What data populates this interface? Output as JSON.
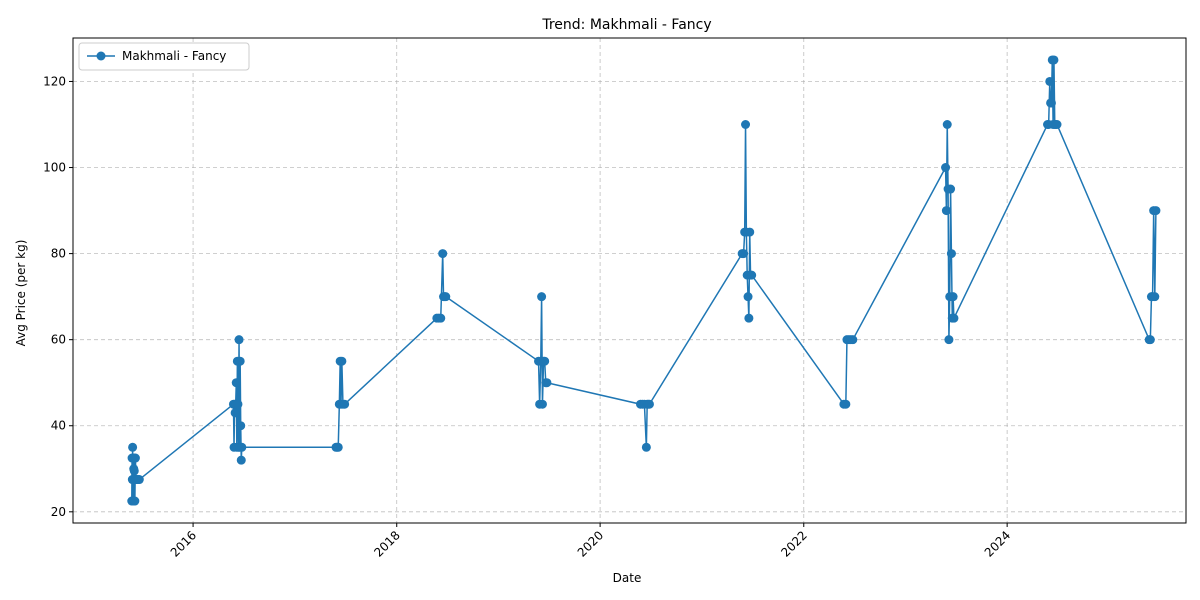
{
  "chart_data": {
    "type": "line",
    "title": "Trend: Makhmali - Fancy",
    "xlabel": "Date",
    "ylabel": "Avg Price (per kg)",
    "xlim": [
      "2014-10-27",
      "2025-10-04"
    ],
    "ylim": [
      17.4,
      130.1
    ],
    "x_ticks": [
      "2016-01-01",
      "2018-01-01",
      "2020-01-01",
      "2022-01-01",
      "2024-01-01"
    ],
    "x_tick_labels": [
      "2016",
      "2018",
      "2020",
      "2022",
      "2024"
    ],
    "y_ticks": [
      20,
      40,
      60,
      80,
      100,
      120
    ],
    "grid": true,
    "legend_position": "upper-left",
    "color": "#1f77b4",
    "series": [
      {
        "name": "Makhmali - Fancy",
        "points": [
          [
            "2015-05-26",
            22.5
          ],
          [
            "2015-05-27",
            32.5
          ],
          [
            "2015-05-28",
            27.5
          ],
          [
            "2015-05-29",
            35
          ],
          [
            "2015-05-30",
            22.5
          ],
          [
            "2015-05-31",
            27.5
          ],
          [
            "2015-06-01",
            32.5
          ],
          [
            "2015-06-02",
            30
          ],
          [
            "2015-06-03",
            22.5
          ],
          [
            "2015-06-04",
            29.5
          ],
          [
            "2015-06-05",
            32.5
          ],
          [
            "2015-06-06",
            22.5
          ],
          [
            "2015-06-07",
            27.5
          ],
          [
            "2015-06-08",
            32.5
          ],
          [
            "2015-06-10",
            27.5
          ],
          [
            "2015-06-14",
            27.5
          ],
          [
            "2015-06-18",
            27.5
          ],
          [
            "2015-06-22",
            27.5
          ],
          [
            "2016-05-25",
            45
          ],
          [
            "2016-05-27",
            35
          ],
          [
            "2016-05-29",
            45
          ],
          [
            "2016-05-31",
            43
          ],
          [
            "2016-06-02",
            45
          ],
          [
            "2016-06-04",
            50
          ],
          [
            "2016-06-06",
            35
          ],
          [
            "2016-06-08",
            55
          ],
          [
            "2016-06-10",
            45
          ],
          [
            "2016-06-12",
            35
          ],
          [
            "2016-06-14",
            60
          ],
          [
            "2016-06-16",
            35
          ],
          [
            "2016-06-18",
            55
          ],
          [
            "2016-06-20",
            40
          ],
          [
            "2016-06-22",
            32
          ],
          [
            "2016-06-24",
            35
          ],
          [
            "2017-05-28",
            35
          ],
          [
            "2017-06-01",
            35
          ],
          [
            "2017-06-05",
            35
          ],
          [
            "2017-06-09",
            45
          ],
          [
            "2017-06-12",
            55
          ],
          [
            "2017-06-15",
            45
          ],
          [
            "2017-06-18",
            55
          ],
          [
            "2017-06-22",
            45
          ],
          [
            "2017-06-28",
            45
          ],
          [
            "2018-05-25",
            65
          ],
          [
            "2018-06-01",
            65
          ],
          [
            "2018-06-08",
            65
          ],
          [
            "2018-06-15",
            80
          ],
          [
            "2018-06-18",
            70
          ],
          [
            "2018-06-22",
            70
          ],
          [
            "2018-06-26",
            70
          ],
          [
            "2019-05-25",
            55
          ],
          [
            "2019-05-29",
            45
          ],
          [
            "2019-06-02",
            55
          ],
          [
            "2019-06-05",
            70
          ],
          [
            "2019-06-08",
            45
          ],
          [
            "2019-06-12",
            55
          ],
          [
            "2019-06-16",
            55
          ],
          [
            "2019-06-20",
            50
          ],
          [
            "2019-06-24",
            50
          ],
          [
            "2020-05-25",
            45
          ],
          [
            "2020-06-01",
            45
          ],
          [
            "2020-06-08",
            45
          ],
          [
            "2020-06-15",
            35
          ],
          [
            "2020-06-18",
            45
          ],
          [
            "2020-06-22",
            45
          ],
          [
            "2020-06-26",
            45
          ],
          [
            "2021-05-25",
            80
          ],
          [
            "2021-05-30",
            80
          ],
          [
            "2021-06-03",
            85
          ],
          [
            "2021-06-06",
            110
          ],
          [
            "2021-06-09",
            85
          ],
          [
            "2021-06-12",
            75
          ],
          [
            "2021-06-15",
            70
          ],
          [
            "2021-06-18",
            65
          ],
          [
            "2021-06-21",
            85
          ],
          [
            "2021-06-24",
            75
          ],
          [
            "2021-06-28",
            75
          ],
          [
            "2022-05-25",
            45
          ],
          [
            "2022-06-01",
            45
          ],
          [
            "2022-06-05",
            60
          ],
          [
            "2022-06-12",
            60
          ],
          [
            "2022-06-19",
            60
          ],
          [
            "2022-06-26",
            60
          ],
          [
            "2023-05-25",
            100
          ],
          [
            "2023-05-28",
            90
          ],
          [
            "2023-05-31",
            110
          ],
          [
            "2023-06-03",
            95
          ],
          [
            "2023-06-06",
            60
          ],
          [
            "2023-06-09",
            70
          ],
          [
            "2023-06-12",
            95
          ],
          [
            "2023-06-15",
            80
          ],
          [
            "2023-06-18",
            65
          ],
          [
            "2023-06-21",
            70
          ],
          [
            "2023-06-24",
            65
          ],
          [
            "2024-05-25",
            110
          ],
          [
            "2024-05-29",
            110
          ],
          [
            "2024-06-02",
            120
          ],
          [
            "2024-06-05",
            115
          ],
          [
            "2024-06-08",
            115
          ],
          [
            "2024-06-11",
            125
          ],
          [
            "2024-06-14",
            110
          ],
          [
            "2024-06-17",
            125
          ],
          [
            "2024-06-20",
            110
          ],
          [
            "2024-06-24",
            110
          ],
          [
            "2024-06-28",
            110
          ],
          [
            "2025-05-25",
            60
          ],
          [
            "2025-05-29",
            60
          ],
          [
            "2025-06-02",
            70
          ],
          [
            "2025-06-06",
            70
          ],
          [
            "2025-06-10",
            90
          ],
          [
            "2025-06-14",
            70
          ],
          [
            "2025-06-18",
            90
          ]
        ]
      }
    ]
  }
}
